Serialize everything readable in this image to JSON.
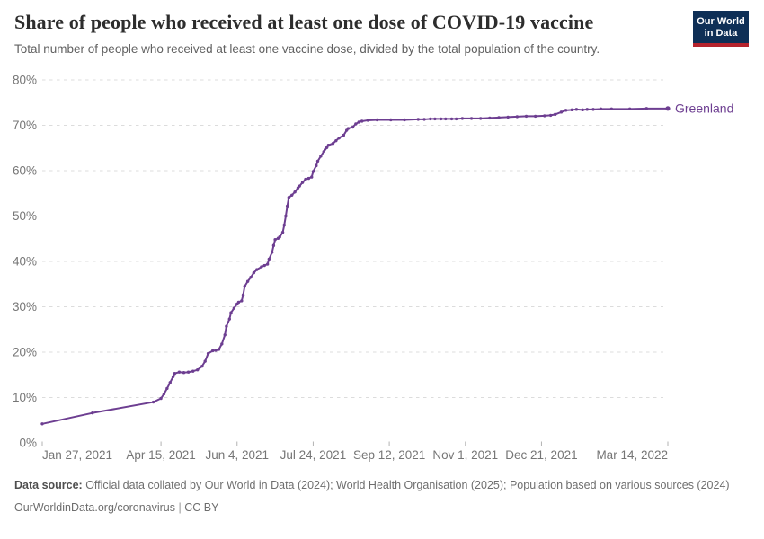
{
  "logo": {
    "line1": "Our World",
    "line2": "in Data"
  },
  "colors": {
    "series_purple": "#6D3E91",
    "logo_bg": "#0e2f56",
    "logo_accent": "#b5232d"
  },
  "chart_data": {
    "type": "line",
    "title": "Share of people who received at least one dose of COVID-19 vaccine",
    "subtitle": "Total number of people who received at least one vaccine dose, divided by the total population of the country.",
    "grid": "horizontal-dashed",
    "legend_position": "line-end-label",
    "ylim": [
      0,
      80
    ],
    "y_ticks": [
      0,
      10,
      20,
      30,
      40,
      50,
      60,
      70,
      80
    ],
    "y_suffix": "%",
    "x_range_days": [
      0,
      411
    ],
    "x_ticks": [
      {
        "label": "Jan 27, 2021",
        "day": 0
      },
      {
        "label": "Apr 15, 2021",
        "day": 78
      },
      {
        "label": "Jun 4, 2021",
        "day": 128
      },
      {
        "label": "Jul 24, 2021",
        "day": 178
      },
      {
        "label": "Sep 12, 2021",
        "day": 228
      },
      {
        "label": "Nov 1, 2021",
        "day": 278
      },
      {
        "label": "Dec 21, 2021",
        "day": 328
      },
      {
        "label": "Mar 14, 2022",
        "day": 411
      }
    ],
    "series": [
      {
        "name": "Greenland",
        "color": "#6D3E91",
        "x_days": [
          0,
          33,
          73,
          78,
          80,
          82,
          84,
          86,
          87,
          90,
          93,
          96,
          99,
          102,
          105,
          107,
          109,
          112,
          114,
          116,
          118,
          120,
          121,
          123,
          124,
          126,
          128,
          129,
          131,
          132,
          133,
          135,
          137,
          139,
          141,
          144,
          146,
          148,
          149,
          151,
          152,
          153,
          155,
          156,
          158,
          159,
          160,
          161,
          162,
          164,
          166,
          168,
          169,
          171,
          173,
          175,
          177,
          178,
          180,
          181,
          183,
          185,
          187,
          188,
          191,
          193,
          195,
          198,
          200,
          201,
          204,
          206,
          208,
          210,
          214,
          220,
          229,
          238,
          247,
          251,
          255,
          258,
          262,
          265,
          269,
          272,
          276,
          282,
          288,
          294,
          300,
          306,
          312,
          318,
          324,
          330,
          334,
          337,
          341,
          344,
          348,
          351,
          355,
          358,
          362,
          367,
          374,
          386,
          397,
          411
        ],
        "values": [
          4.2,
          6.6,
          9.0,
          9.8,
          10.8,
          12.0,
          13.3,
          14.6,
          15.3,
          15.6,
          15.5,
          15.6,
          15.8,
          16.1,
          16.9,
          18.0,
          19.7,
          20.3,
          20.4,
          20.6,
          21.8,
          23.8,
          25.7,
          27.3,
          28.7,
          29.7,
          30.6,
          31.0,
          31.3,
          32.6,
          34.5,
          35.6,
          36.5,
          37.5,
          38.2,
          38.8,
          39.1,
          39.4,
          40.5,
          42.0,
          43.5,
          44.8,
          45.1,
          45.4,
          46.4,
          48.0,
          50.0,
          52.2,
          54.1,
          54.6,
          55.3,
          56.2,
          56.6,
          57.4,
          58.1,
          58.3,
          58.6,
          59.8,
          61.1,
          62.1,
          63.2,
          64.2,
          65.1,
          65.6,
          66.0,
          66.6,
          67.2,
          67.8,
          68.9,
          69.3,
          69.6,
          70.3,
          70.7,
          70.9,
          71.1,
          71.2,
          71.2,
          71.2,
          71.3,
          71.3,
          71.4,
          71.4,
          71.4,
          71.4,
          71.4,
          71.4,
          71.5,
          71.5,
          71.5,
          71.6,
          71.7,
          71.8,
          71.9,
          72.0,
          72.0,
          72.1,
          72.2,
          72.4,
          72.9,
          73.3,
          73.4,
          73.5,
          73.4,
          73.5,
          73.5,
          73.6,
          73.6,
          73.6,
          73.7,
          73.7
        ]
      }
    ]
  },
  "footer": {
    "data_source_label": "Data source:",
    "data_source_text": " Official data collated by Our World in Data (2024); World Health Organisation (2025); Population based on various sources (2024)",
    "link_text": "OurWorldinData.org/coronavirus",
    "separator": " | ",
    "license": "CC BY"
  }
}
